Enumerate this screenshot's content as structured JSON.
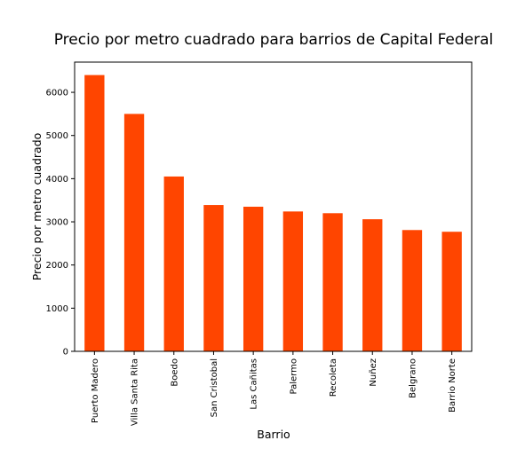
{
  "chart_data": {
    "type": "bar",
    "title": "Precio por metro cuadrado para barrios de Capital Federal",
    "xlabel": "Barrio",
    "ylabel": "Precio por metro cuadrado",
    "categories": [
      "Puerto Madero",
      "Villa Santa Rita",
      "Boedo",
      "San Cristobal",
      "Las Cañitas",
      "Palermo",
      "Recoleta",
      "Nuñez",
      "Belgrano",
      "Barrio Norte"
    ],
    "values": [
      6400,
      5500,
      4050,
      3390,
      3350,
      3240,
      3200,
      3060,
      2810,
      2770
    ],
    "yticks": [
      0,
      1000,
      2000,
      3000,
      4000,
      5000,
      6000
    ],
    "ylim": [
      0,
      6700
    ],
    "bar_color": "#ff4500",
    "grid": false,
    "legend": false
  }
}
